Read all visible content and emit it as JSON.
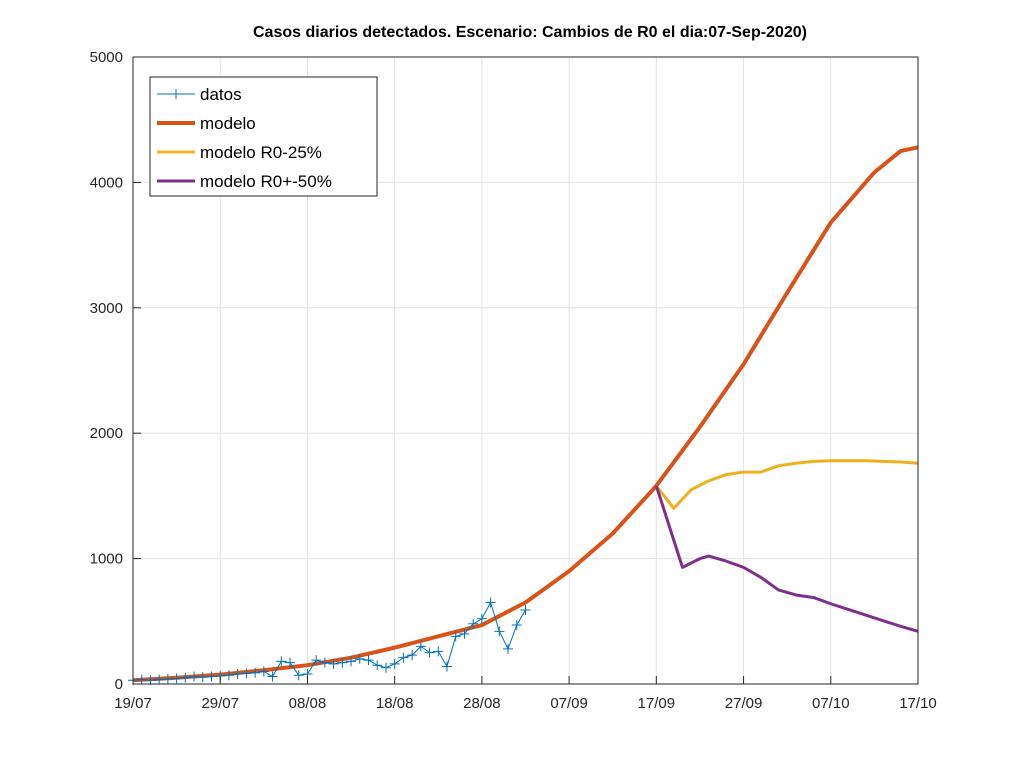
{
  "chart_data": {
    "type": "line",
    "title": "Casos diarios detectados. Escenario: Cambios de R0 el dia:07-Sep-2020)",
    "xlabel": "",
    "ylabel": "",
    "xlim_days": [
      0,
      90
    ],
    "x_origin_date": "19/07",
    "ylim": [
      0,
      5000
    ],
    "grid": true,
    "legend_position": "top-left",
    "x_ticks": [
      {
        "day": 0,
        "label": "19/07"
      },
      {
        "day": 10,
        "label": "29/07"
      },
      {
        "day": 20,
        "label": "08/08"
      },
      {
        "day": 30,
        "label": "18/08"
      },
      {
        "day": 40,
        "label": "28/08"
      },
      {
        "day": 50,
        "label": "07/09"
      },
      {
        "day": 60,
        "label": "17/09"
      },
      {
        "day": 70,
        "label": "27/09"
      },
      {
        "day": 80,
        "label": "07/10"
      },
      {
        "day": 90,
        "label": "17/10"
      }
    ],
    "y_ticks": [
      {
        "value": 0,
        "label": "0"
      },
      {
        "value": 1000,
        "label": "1000"
      },
      {
        "value": 2000,
        "label": "2000"
      },
      {
        "value": 3000,
        "label": "3000"
      },
      {
        "value": 4000,
        "label": "4000"
      },
      {
        "value": 5000,
        "label": "5000"
      }
    ],
    "series": [
      {
        "name": "datos",
        "color": "#0072bd",
        "marker": "+",
        "x": [
          0,
          1,
          2,
          3,
          4,
          5,
          6,
          7,
          8,
          9,
          10,
          11,
          12,
          13,
          14,
          15,
          16,
          17,
          18,
          19,
          20,
          21,
          22,
          23,
          24,
          25,
          26,
          27,
          28,
          29,
          30,
          31,
          32,
          33,
          34,
          35,
          36,
          37,
          38,
          39,
          40,
          41,
          42,
          43,
          44,
          45
        ],
        "y": [
          30,
          35,
          30,
          35,
          40,
          45,
          50,
          60,
          55,
          60,
          65,
          70,
          80,
          85,
          90,
          100,
          60,
          180,
          170,
          70,
          80,
          190,
          170,
          160,
          170,
          180,
          200,
          190,
          150,
          130,
          160,
          210,
          230,
          300,
          250,
          260,
          140,
          380,
          400,
          480,
          520,
          650,
          420,
          280,
          470,
          590
        ]
      },
      {
        "name": "modelo",
        "color": "#d95319",
        "x": [
          0,
          5,
          10,
          15,
          20,
          25,
          30,
          35,
          40,
          45,
          50,
          55,
          60,
          65,
          70,
          75,
          80,
          85,
          88,
          90
        ],
        "y": [
          30,
          50,
          75,
          110,
          150,
          210,
          290,
          380,
          470,
          650,
          900,
          1200,
          1580,
          2050,
          2550,
          3120,
          3680,
          4080,
          4250,
          4280
        ]
      },
      {
        "name": "modelo R0-25%",
        "color": "#edb120",
        "x": [
          60,
          62,
          64,
          66,
          68,
          70,
          72,
          74,
          76,
          78,
          80,
          84,
          88,
          90
        ],
        "y": [
          1580,
          1400,
          1550,
          1620,
          1670,
          1690,
          1690,
          1740,
          1760,
          1775,
          1780,
          1780,
          1770,
          1760
        ]
      },
      {
        "name": "modelo R0+-50%",
        "color": "#7e2f8e",
        "x": [
          60,
          63,
          65,
          66,
          68,
          70,
          72,
          74,
          76,
          78,
          80,
          84,
          88,
          90
        ],
        "y": [
          1580,
          930,
          1000,
          1020,
          980,
          930,
          850,
          750,
          710,
          690,
          640,
          550,
          460,
          420
        ]
      }
    ]
  }
}
